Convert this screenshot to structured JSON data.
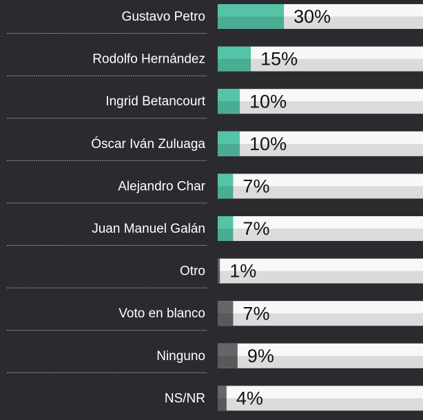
{
  "chart_data": {
    "type": "bar",
    "orientation": "horizontal",
    "categories": [
      "Gustavo Petro",
      "Rodolfo Hernández",
      "Ingrid Betancourt",
      "Óscar Iván Zuluaga",
      "Alejandro Char",
      "Juan Manuel Galán",
      "Otro",
      "Voto en blanco",
      "Ninguno",
      "NS/NR"
    ],
    "values": [
      30,
      15,
      10,
      10,
      7,
      7,
      1,
      7,
      9,
      4
    ],
    "value_labels": [
      "30%",
      "15%",
      "10%",
      "10%",
      "7%",
      "7%",
      "1%",
      "7%",
      "9%",
      "4%"
    ],
    "colors": [
      "#4fb59c",
      "#4fb59c",
      "#4fb59c",
      "#4fb59c",
      "#4fb59c",
      "#4fb59c",
      "#5e5e60",
      "#5e5e60",
      "#5e5e60",
      "#5e5e60"
    ],
    "track_color": "#e6e6e6",
    "xlim": [
      0,
      93
    ]
  }
}
